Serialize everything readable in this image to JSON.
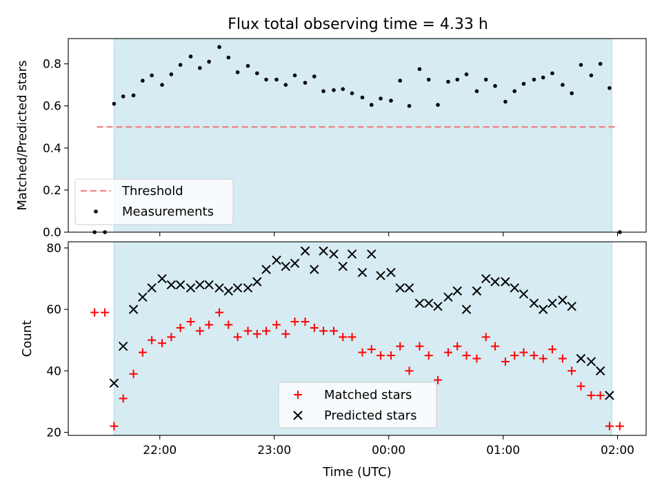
{
  "figure": {
    "title": "Flux total observing time = 4.33 h"
  },
  "colors": {
    "shade": "#add8e6",
    "threshold": "#f08080",
    "matched": "#ff0000",
    "predicted": "#000000",
    "measurement": "#000000"
  },
  "chart_data": [
    {
      "type": "scatter",
      "ylabel": "Matched/Predicted stars",
      "ylim": [
        0.0,
        0.92
      ],
      "yticks": [
        "0.0",
        "0.2",
        "0.4",
        "0.6",
        "0.8"
      ],
      "ytick_values": [
        0.0,
        0.2,
        0.4,
        0.6,
        0.8
      ],
      "shaded_span": {
        "start": 21.6,
        "end": 25.95
      },
      "threshold": {
        "name": "Threshold",
        "value": 0.5,
        "x_range": [
          21.45,
          26.0
        ]
      },
      "legend": {
        "placement": "lower-left",
        "entries": [
          "Threshold",
          "Measurements"
        ]
      },
      "series": [
        {
          "name": "Measurements",
          "x": [
            21.43,
            21.52,
            21.6,
            21.68,
            21.77,
            21.85,
            21.93,
            22.02,
            22.1,
            22.18,
            22.27,
            22.35,
            22.43,
            22.52,
            22.6,
            22.68,
            22.77,
            22.85,
            22.93,
            23.02,
            23.1,
            23.18,
            23.27,
            23.35,
            23.43,
            23.52,
            23.6,
            23.68,
            23.77,
            23.85,
            23.93,
            24.02,
            24.1,
            24.18,
            24.27,
            24.35,
            24.43,
            24.52,
            24.6,
            24.68,
            24.77,
            24.85,
            24.93,
            25.02,
            25.1,
            25.18,
            25.27,
            25.35,
            25.43,
            25.52,
            25.6,
            25.68,
            25.77,
            25.85,
            25.93,
            26.02
          ],
          "y": [
            0.0,
            0.0,
            0.61,
            0.645,
            0.65,
            0.72,
            0.745,
            0.7,
            0.75,
            0.795,
            0.835,
            0.78,
            0.81,
            0.88,
            0.83,
            0.76,
            0.79,
            0.755,
            0.725,
            0.725,
            0.7,
            0.745,
            0.71,
            0.74,
            0.67,
            0.675,
            0.68,
            0.66,
            0.64,
            0.605,
            0.635,
            0.625,
            0.72,
            0.6,
            0.775,
            0.725,
            0.605,
            0.715,
            0.725,
            0.75,
            0.67,
            0.725,
            0.695,
            0.62,
            0.67,
            0.705,
            0.725,
            0.735,
            0.755,
            0.7,
            0.66,
            0.795,
            0.745,
            0.8,
            0.685,
            0.0
          ]
        }
      ]
    },
    {
      "type": "scatter",
      "xlabel": "Time (UTC)",
      "ylabel": "Count",
      "ylim": [
        19,
        82
      ],
      "yticks": [
        "20",
        "40",
        "60",
        "80"
      ],
      "ytick_values": [
        20,
        40,
        60,
        80
      ],
      "xlim": [
        21.2,
        26.25
      ],
      "xticks": [
        "22:00",
        "23:00",
        "00:00",
        "01:00",
        "02:00"
      ],
      "xtick_values": [
        22.0,
        23.0,
        24.0,
        25.0,
        26.0
      ],
      "shaded_span": {
        "start": 21.6,
        "end": 25.95
      },
      "legend": {
        "placement": "lower-center",
        "entries": [
          "Matched stars",
          "Predicted stars"
        ]
      },
      "series": [
        {
          "name": "Matched stars",
          "marker": "plus",
          "x": [
            21.43,
            21.52,
            21.6,
            21.68,
            21.77,
            21.85,
            21.93,
            22.02,
            22.1,
            22.18,
            22.27,
            22.35,
            22.43,
            22.52,
            22.6,
            22.68,
            22.77,
            22.85,
            22.93,
            23.02,
            23.1,
            23.18,
            23.27,
            23.35,
            23.43,
            23.52,
            23.6,
            23.68,
            23.77,
            23.85,
            23.93,
            24.02,
            24.1,
            24.18,
            24.27,
            24.35,
            24.43,
            24.52,
            24.6,
            24.68,
            24.77,
            24.85,
            24.93,
            25.02,
            25.1,
            25.18,
            25.27,
            25.35,
            25.43,
            25.52,
            25.6,
            25.68,
            25.77,
            25.85,
            25.93,
            26.02
          ],
          "y": [
            59,
            59,
            22,
            31,
            39,
            46,
            50,
            49,
            51,
            54,
            56,
            53,
            55,
            59,
            55,
            51,
            53,
            52,
            53,
            55,
            52,
            56,
            56,
            54,
            53,
            53,
            51,
            51,
            46,
            47,
            45,
            45,
            48,
            40,
            48,
            45,
            37,
            46,
            48,
            45,
            44,
            51,
            48,
            43,
            45,
            46,
            45,
            44,
            47,
            44,
            40,
            35,
            32,
            32,
            22,
            22
          ]
        },
        {
          "name": "Predicted stars",
          "marker": "x",
          "x": [
            21.6,
            21.68,
            21.77,
            21.85,
            21.93,
            22.02,
            22.1,
            22.18,
            22.27,
            22.35,
            22.43,
            22.52,
            22.6,
            22.68,
            22.77,
            22.85,
            22.93,
            23.02,
            23.1,
            23.18,
            23.27,
            23.35,
            23.43,
            23.52,
            23.6,
            23.68,
            23.77,
            23.85,
            23.93,
            24.02,
            24.1,
            24.18,
            24.27,
            24.35,
            24.43,
            24.52,
            24.6,
            24.68,
            24.77,
            24.85,
            24.93,
            25.02,
            25.1,
            25.18,
            25.27,
            25.35,
            25.43,
            25.52,
            25.6,
            25.68,
            25.77,
            25.85,
            25.93
          ],
          "y": [
            36,
            48,
            60,
            64,
            67,
            70,
            68,
            68,
            67,
            68,
            68,
            67,
            66,
            67,
            67,
            69,
            73,
            76,
            74,
            75,
            79,
            73,
            79,
            78,
            74,
            78,
            72,
            78,
            71,
            72,
            67,
            67,
            62,
            62,
            61,
            64,
            66,
            60,
            66,
            70,
            69,
            69,
            67,
            65,
            62,
            60,
            62,
            63,
            61,
            44,
            43,
            40,
            32
          ]
        }
      ]
    }
  ]
}
